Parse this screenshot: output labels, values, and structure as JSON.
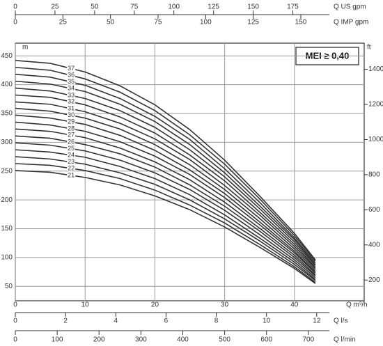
{
  "chart_data": {
    "type": "line",
    "xlabel": "Q m³/h",
    "ylabel": "m",
    "y2label": "ft",
    "annotation": "MEI ≥ 0,40",
    "x": [
      0,
      5,
      10,
      15,
      20,
      25,
      30,
      35,
      40,
      43
    ],
    "xlim": [
      0,
      50
    ],
    "xticks": [
      0,
      10,
      20,
      30,
      40
    ],
    "ylim": [
      25,
      472
    ],
    "yticks": [
      50,
      100,
      150,
      200,
      250,
      300,
      350,
      400,
      450
    ],
    "y2lim": [
      82,
      1549
    ],
    "y2ticks": [
      200,
      400,
      600,
      800,
      1000,
      1200,
      1400
    ],
    "grid": true,
    "series": [
      {
        "name": "21",
        "color": "#333333",
        "values": [
          251,
          248,
          239,
          226,
          207,
          183,
          153,
          118,
          81,
          55
        ]
      },
      {
        "name": "22",
        "color": "#333333",
        "values": [
          263,
          260,
          251,
          237,
          217,
          191,
          160,
          123,
          84,
          57
        ]
      },
      {
        "name": "23",
        "color": "#333333",
        "values": [
          275,
          271,
          262,
          247,
          227,
          200,
          167,
          129,
          88,
          60
        ]
      },
      {
        "name": "24",
        "color": "#333333",
        "values": [
          287,
          283,
          274,
          258,
          237,
          209,
          174,
          134,
          92,
          62
        ]
      },
      {
        "name": "25",
        "color": "#333333",
        "values": [
          299,
          295,
          285,
          269,
          247,
          218,
          182,
          140,
          96,
          65
        ]
      },
      {
        "name": "26",
        "color": "#333333",
        "values": [
          311,
          307,
          296,
          280,
          257,
          226,
          189,
          146,
          100,
          68
        ]
      },
      {
        "name": "27",
        "color": "#333333",
        "values": [
          323,
          319,
          308,
          290,
          266,
          235,
          196,
          151,
          104,
          70
        ]
      },
      {
        "name": "28",
        "color": "#333333",
        "values": [
          335,
          330,
          319,
          301,
          276,
          244,
          204,
          157,
          108,
          73
        ]
      },
      {
        "name": "29",
        "color": "#333333",
        "values": [
          347,
          342,
          331,
          312,
          286,
          252,
          211,
          162,
          111,
          75
        ]
      },
      {
        "name": "30",
        "color": "#333333",
        "values": [
          359,
          354,
          342,
          323,
          296,
          261,
          218,
          168,
          115,
          78
        ]
      },
      {
        "name": "31",
        "color": "#333333",
        "values": [
          370,
          366,
          353,
          333,
          306,
          270,
          225,
          174,
          119,
          81
        ]
      },
      {
        "name": "32",
        "color": "#333333",
        "values": [
          382,
          378,
          365,
          344,
          316,
          278,
          233,
          179,
          123,
          83
        ]
      },
      {
        "name": "33",
        "color": "#333333",
        "values": [
          394,
          389,
          376,
          355,
          326,
          287,
          240,
          185,
          127,
          86
        ]
      },
      {
        "name": "34",
        "color": "#333333",
        "values": [
          406,
          401,
          388,
          366,
          336,
          296,
          247,
          190,
          131,
          88
        ]
      },
      {
        "name": "35",
        "color": "#333333",
        "values": [
          418,
          413,
          399,
          376,
          345,
          305,
          254,
          196,
          134,
          91
        ]
      },
      {
        "name": "36",
        "color": "#333333",
        "values": [
          430,
          425,
          410,
          387,
          355,
          313,
          262,
          202,
          138,
          94
        ]
      },
      {
        "name": "37",
        "color": "#333333",
        "values": [
          442,
          437,
          422,
          398,
          365,
          322,
          269,
          207,
          142,
          96
        ]
      }
    ],
    "extra_x_axes": [
      {
        "label": "Q US gpm",
        "position": "top",
        "xlim": [
          0,
          220
        ],
        "xticks": [
          0,
          25,
          50,
          75,
          100,
          125,
          150,
          175
        ]
      },
      {
        "label": "Q IMP gpm",
        "position": "top",
        "xlim": [
          0,
          183.3
        ],
        "xticks": [
          0,
          25,
          50,
          75,
          100,
          125,
          150
        ]
      },
      {
        "label": "Q l/s",
        "position": "bottom",
        "xlim": [
          0,
          13.89
        ],
        "xticks": [
          0,
          2,
          4,
          6,
          8,
          10,
          12
        ]
      },
      {
        "label": "Q l/min",
        "position": "bottom",
        "xlim": [
          0,
          833.3
        ],
        "xticks": [
          0,
          100,
          200,
          300,
          400,
          500,
          600,
          700
        ]
      }
    ]
  }
}
